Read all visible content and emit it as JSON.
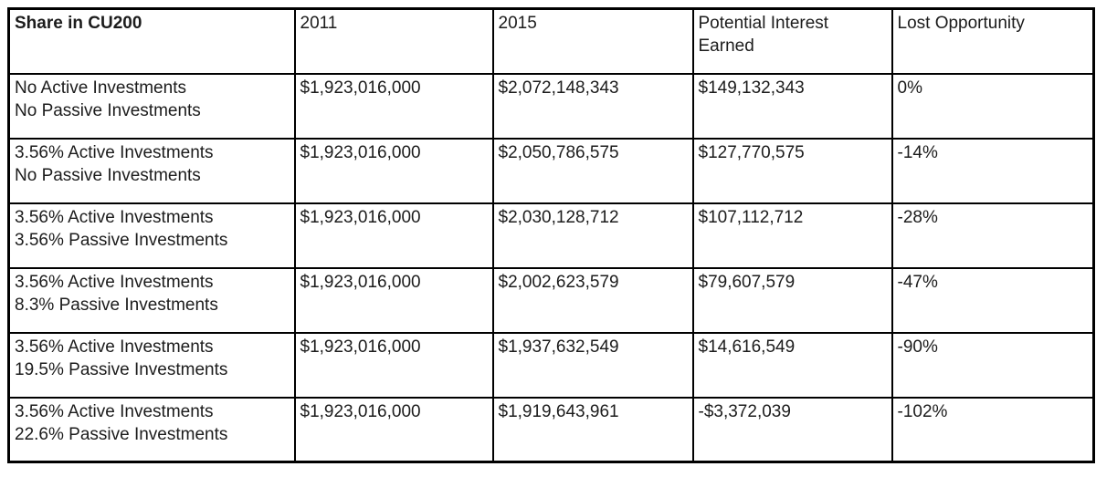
{
  "table": {
    "columns": [
      "Share in CU200",
      "2011",
      "2015",
      "Potential Interest Earned",
      "Lost Opportunity"
    ],
    "rows": [
      {
        "label_lines": [
          "No Active Investments",
          "No Passive Investments"
        ],
        "y2011": "$1,923,016,000",
        "y2015": "$2,072,148,343",
        "interest": "$149,132,343",
        "lost": "0%"
      },
      {
        "label_lines": [
          "3.56% Active Investments",
          "No Passive Investments"
        ],
        "y2011": "$1,923,016,000",
        "y2015": "$2,050,786,575",
        "interest": "$127,770,575",
        "lost": "-14%"
      },
      {
        "label_lines": [
          "3.56% Active Investments",
          "3.56% Passive Investments"
        ],
        "y2011": "$1,923,016,000",
        "y2015": "$2,030,128,712",
        "interest": "$107,112,712",
        "lost": "-28%"
      },
      {
        "label_lines": [
          "3.56% Active Investments",
          "8.3% Passive Investments"
        ],
        "y2011": "$1,923,016,000",
        "y2015": "$2,002,623,579",
        "interest": "$79,607,579",
        "lost": "-47%"
      },
      {
        "label_lines": [
          "3.56% Active Investments",
          "19.5% Passive Investments"
        ],
        "y2011": "$1,923,016,000",
        "y2015": "$1,937,632,549",
        "interest": "$14,616,549",
        "lost": "-90%"
      },
      {
        "label_lines": [
          "3.56% Active Investments",
          "22.6% Passive Investments"
        ],
        "y2011": "$1,923,016,000",
        "y2015": "$1,919,643,961",
        "interest": "-$3,372,039",
        "lost": "-102%"
      }
    ]
  },
  "colors": {
    "border": "#000000",
    "text": "#1c1c1c",
    "background": "#ffffff"
  },
  "chart_data": {
    "type": "table",
    "title": "Share in CU200",
    "columns": [
      "Share in CU200",
      "2011",
      "2015",
      "Potential Interest Earned",
      "Lost Opportunity"
    ],
    "rows": [
      [
        "No Active Investments / No Passive Investments",
        "$1,923,016,000",
        "$2,072,148,343",
        "$149,132,343",
        "0%"
      ],
      [
        "3.56% Active Investments / No Passive Investments",
        "$1,923,016,000",
        "$2,050,786,575",
        "$127,770,575",
        "-14%"
      ],
      [
        "3.56% Active Investments / 3.56% Passive Investments",
        "$1,923,016,000",
        "$2,030,128,712",
        "$107,112,712",
        "-28%"
      ],
      [
        "3.56% Active Investments / 8.3% Passive Investments",
        "$1,923,016,000",
        "$2,002,623,579",
        "$79,607,579",
        "-47%"
      ],
      [
        "3.56% Active Investments / 19.5% Passive Investments",
        "$1,923,016,000",
        "$1,937,632,549",
        "$14,616,549",
        "-90%"
      ],
      [
        "3.56% Active Investments / 22.6% Passive Investments",
        "$1,923,016,000",
        "$1,919,643,961",
        "-$3,372,039",
        "-102%"
      ]
    ],
    "values_numeric": {
      "y2011": [
        1923016000,
        1923016000,
        1923016000,
        1923016000,
        1923016000,
        1923016000
      ],
      "y2015": [
        2072148343,
        2050786575,
        2030128712,
        2002623579,
        1937632549,
        1919643961
      ],
      "potential_interest_earned": [
        149132343,
        127770575,
        107112712,
        79607579,
        14616549,
        -3372039
      ],
      "lost_opportunity_pct": [
        0,
        -14,
        -28,
        -47,
        -90,
        -102
      ]
    }
  }
}
